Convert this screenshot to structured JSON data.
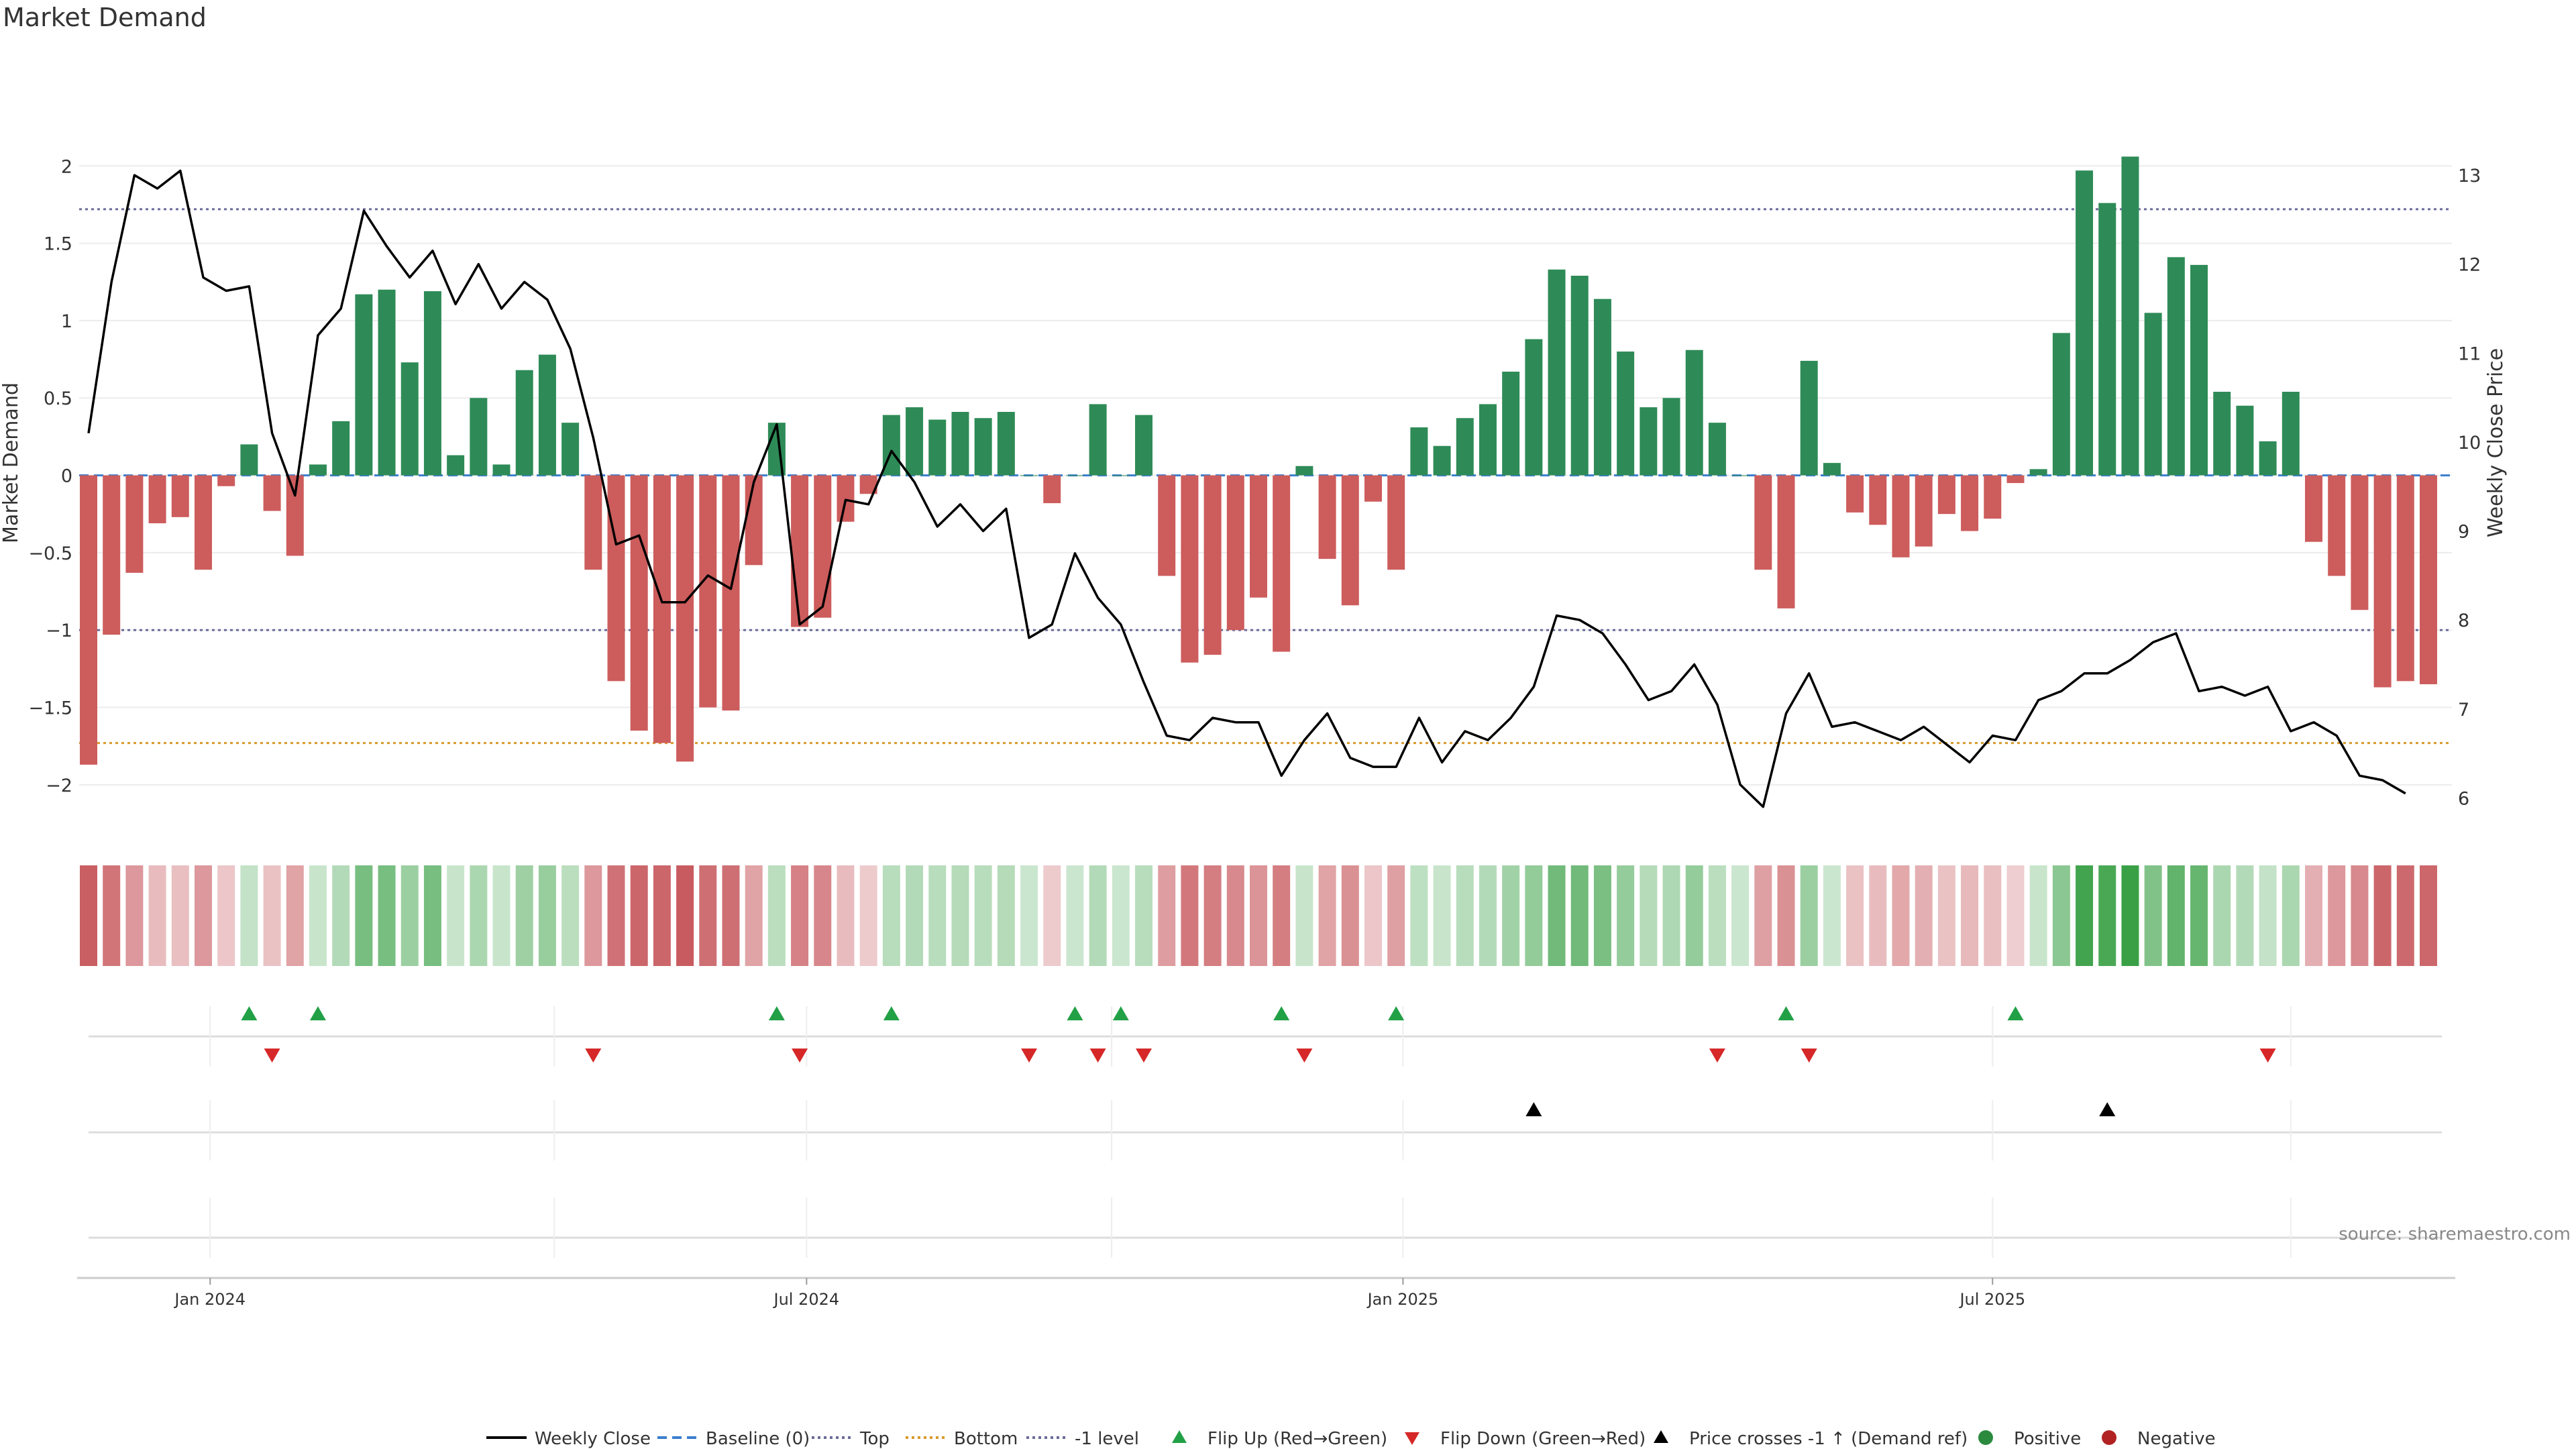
{
  "title": "Market Demand",
  "source": "source: sharemaestro.com",
  "colors": {
    "bar_pos": "#2e8b57",
    "bar_neg": "#cd5c5c",
    "line": "#000000",
    "top_line": "#6b6b9a",
    "bottom_line": "#d99a2b",
    "minus1_line": "#6b6b9a",
    "baseline": "#3a7ecf",
    "flip_up": "#22a046",
    "flip_down": "#d62828",
    "cross": "#000000",
    "positive_dot": "#2b8a3e",
    "negative_dot": "#b22222"
  },
  "chart_data": {
    "type": "bar",
    "title": "Market Demand",
    "ylabel": "Market Demand",
    "y2label": "Weekly Close Price",
    "ylim": [
      -2.2,
      2.4
    ],
    "y2lim": [
      5.8,
      13.8
    ],
    "y_ticks": [
      "2",
      "1.5",
      "1",
      "0.5",
      "0",
      "−0.5",
      "−1",
      "−1.5",
      "−2"
    ],
    "y_tick_values": [
      2,
      1.5,
      1,
      0.5,
      0,
      -0.5,
      -1,
      -1.5,
      -2
    ],
    "y2_ticks": [
      "13",
      "12",
      "11",
      "10",
      "9",
      "8",
      "7",
      "6"
    ],
    "y2_tick_values": [
      13,
      12,
      11,
      10,
      9,
      8,
      7,
      6
    ],
    "x_ticks": [
      "Jan 2024",
      "Jul 2024",
      "Jan 2025",
      "Jul 2025"
    ],
    "x_tick_index": [
      5.3,
      31.3,
      57.3,
      83.0
    ],
    "levels": {
      "top": 1.72,
      "bottom": -1.73,
      "minus1": -1.0,
      "baseline": 0
    },
    "demand": [
      -1.87,
      -1.03,
      -0.63,
      -0.31,
      -0.27,
      -0.61,
      -0.07,
      0.2,
      -0.23,
      -0.52,
      0.07,
      0.35,
      1.17,
      1.2,
      0.73,
      1.19,
      0.13,
      0.5,
      0.07,
      0.68,
      0.78,
      0.34,
      -0.61,
      -1.33,
      -1.65,
      -1.73,
      -1.85,
      -1.5,
      -1.52,
      -0.58,
      0.34,
      -0.98,
      -0.92,
      -0.3,
      -0.12,
      0.39,
      0.44,
      0.36,
      0.41,
      0.37,
      0.41,
      0.0,
      -0.18,
      0.0,
      0.46,
      0.0,
      0.39,
      -0.65,
      -1.21,
      -1.16,
      -1.0,
      -0.79,
      -1.14,
      0.06,
      -0.54,
      -0.84,
      -0.17,
      -0.61,
      0.31,
      0.19,
      0.37,
      0.46,
      0.67,
      0.88,
      1.33,
      1.29,
      1.14,
      0.8,
      0.44,
      0.5,
      0.81,
      0.34,
      0.0,
      -0.61,
      -0.86,
      0.74,
      0.08,
      -0.24,
      -0.32,
      -0.53,
      -0.46,
      -0.25,
      -0.36,
      -0.28,
      -0.05,
      0.04,
      0.92,
      1.97,
      1.76,
      2.06,
      1.05,
      1.41,
      1.36,
      0.54,
      0.45,
      0.22,
      0.54,
      -0.43,
      -0.65,
      -0.87,
      -1.37,
      -1.33,
      -1.35
    ],
    "close": [
      10.1,
      11.8,
      13.0,
      12.85,
      13.05,
      11.85,
      11.7,
      11.75,
      10.1,
      9.4,
      11.2,
      11.5,
      12.6,
      12.2,
      11.85,
      12.15,
      11.55,
      12.0,
      11.5,
      11.8,
      11.6,
      11.05,
      10.05,
      8.85,
      8.95,
      8.2,
      8.2,
      8.5,
      8.35,
      9.55,
      10.2,
      7.95,
      8.15,
      9.35,
      9.3,
      9.9,
      9.55,
      9.05,
      9.3,
      9.0,
      9.25,
      7.8,
      7.95,
      8.75,
      8.25,
      7.95,
      7.3,
      6.7,
      6.65,
      6.9,
      6.85,
      6.85,
      6.25,
      6.65,
      6.95,
      6.45,
      6.35,
      6.35,
      6.9,
      6.4,
      6.75,
      6.65,
      6.9,
      7.25,
      8.05,
      8.0,
      7.85,
      7.5,
      7.1,
      7.2,
      7.5,
      7.05,
      6.15,
      5.9,
      6.95,
      7.4,
      6.8,
      6.85,
      6.75,
      6.65,
      6.8,
      6.6,
      6.4,
      6.7,
      6.65,
      7.1,
      7.2,
      7.4,
      7.4,
      7.55,
      7.75,
      7.85,
      7.2,
      7.25,
      7.15,
      7.25,
      6.75,
      6.85,
      6.7,
      6.25,
      6.2,
      6.05
    ],
    "intensity": [
      0.83,
      0.68,
      0.45,
      0.22,
      0.2,
      0.45,
      0.15,
      0.15,
      0.18,
      0.38,
      0.12,
      0.25,
      0.62,
      0.62,
      0.4,
      0.62,
      0.12,
      0.3,
      0.12,
      0.38,
      0.42,
      0.2,
      0.45,
      0.7,
      0.78,
      0.78,
      0.85,
      0.72,
      0.72,
      0.38,
      0.2,
      0.6,
      0.56,
      0.22,
      0.12,
      0.22,
      0.25,
      0.22,
      0.24,
      0.22,
      0.24,
      0.1,
      0.12,
      0.1,
      0.25,
      0.1,
      0.22,
      0.42,
      0.66,
      0.62,
      0.55,
      0.48,
      0.62,
      0.12,
      0.38,
      0.5,
      0.15,
      0.4,
      0.18,
      0.12,
      0.22,
      0.25,
      0.36,
      0.45,
      0.66,
      0.66,
      0.6,
      0.44,
      0.24,
      0.28,
      0.44,
      0.2,
      0.1,
      0.4,
      0.5,
      0.4,
      0.1,
      0.18,
      0.22,
      0.35,
      0.3,
      0.18,
      0.24,
      0.2,
      0.1,
      0.12,
      0.5,
      0.95,
      0.9,
      1.0,
      0.56,
      0.75,
      0.72,
      0.3,
      0.25,
      0.15,
      0.3,
      0.3,
      0.45,
      0.55,
      0.78,
      0.76,
      0.77
    ],
    "flip_up_index": [
      7,
      10,
      30,
      35,
      43,
      45,
      52,
      57,
      74,
      84
    ],
    "flip_down_index": [
      8,
      22,
      31,
      41,
      44,
      46,
      53,
      71,
      75,
      95
    ],
    "cross_index": [
      63,
      88
    ]
  },
  "legend": [
    {
      "label": "Weekly Close",
      "kind": "line"
    },
    {
      "label": "Baseline (0)",
      "kind": "dash-baseline"
    },
    {
      "label": "Top",
      "kind": "dot-top"
    },
    {
      "label": "Bottom",
      "kind": "dot-bottom"
    },
    {
      "label": "-1 level",
      "kind": "dot-minus1"
    },
    {
      "label": "Flip Up (Red→Green)",
      "kind": "tri-up"
    },
    {
      "label": "Flip Down (Green→Red)",
      "kind": "tri-down"
    },
    {
      "label": "Price crosses -1 ↑ (Demand ref)",
      "kind": "tri-cross"
    },
    {
      "label": "Positive",
      "kind": "dot-pos"
    },
    {
      "label": "Negative",
      "kind": "dot-neg"
    }
  ]
}
